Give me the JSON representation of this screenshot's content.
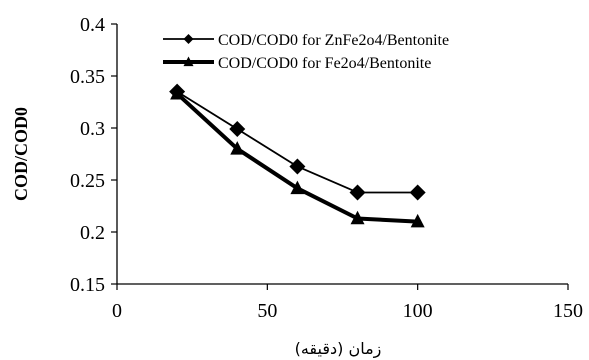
{
  "chart_data": {
    "type": "line",
    "title": "",
    "xlabel": "زمان (دقیقه)",
    "ylabel": "COD/COD0",
    "xlim": [
      0,
      150
    ],
    "ylim": [
      0.15,
      0.4
    ],
    "x_ticks": [
      0,
      50,
      100,
      150
    ],
    "y_ticks": [
      0.15,
      0.2,
      0.25,
      0.3,
      0.35,
      0.4
    ],
    "x_tick_labels": [
      "0",
      "50",
      "100",
      "150"
    ],
    "y_tick_labels": [
      "0.15",
      "0.2",
      "0.25",
      "0.3",
      "0.35",
      "0.4"
    ],
    "grid": false,
    "legend_position": "top-right",
    "series": [
      {
        "name": "COD/COD0 for ZnFe2o4/Bentonite",
        "marker": "diamond",
        "line_weight": "thin",
        "color": "#000000",
        "x": [
          20,
          40,
          60,
          80,
          100
        ],
        "y": [
          0.335,
          0.299,
          0.263,
          0.238,
          0.238
        ]
      },
      {
        "name": "COD/COD0 for Fe2o4/Bentonite",
        "marker": "triangle",
        "line_weight": "thick",
        "color": "#000000",
        "x": [
          20,
          40,
          60,
          80,
          100
        ],
        "y": [
          0.333,
          0.28,
          0.242,
          0.213,
          0.21
        ]
      }
    ]
  }
}
